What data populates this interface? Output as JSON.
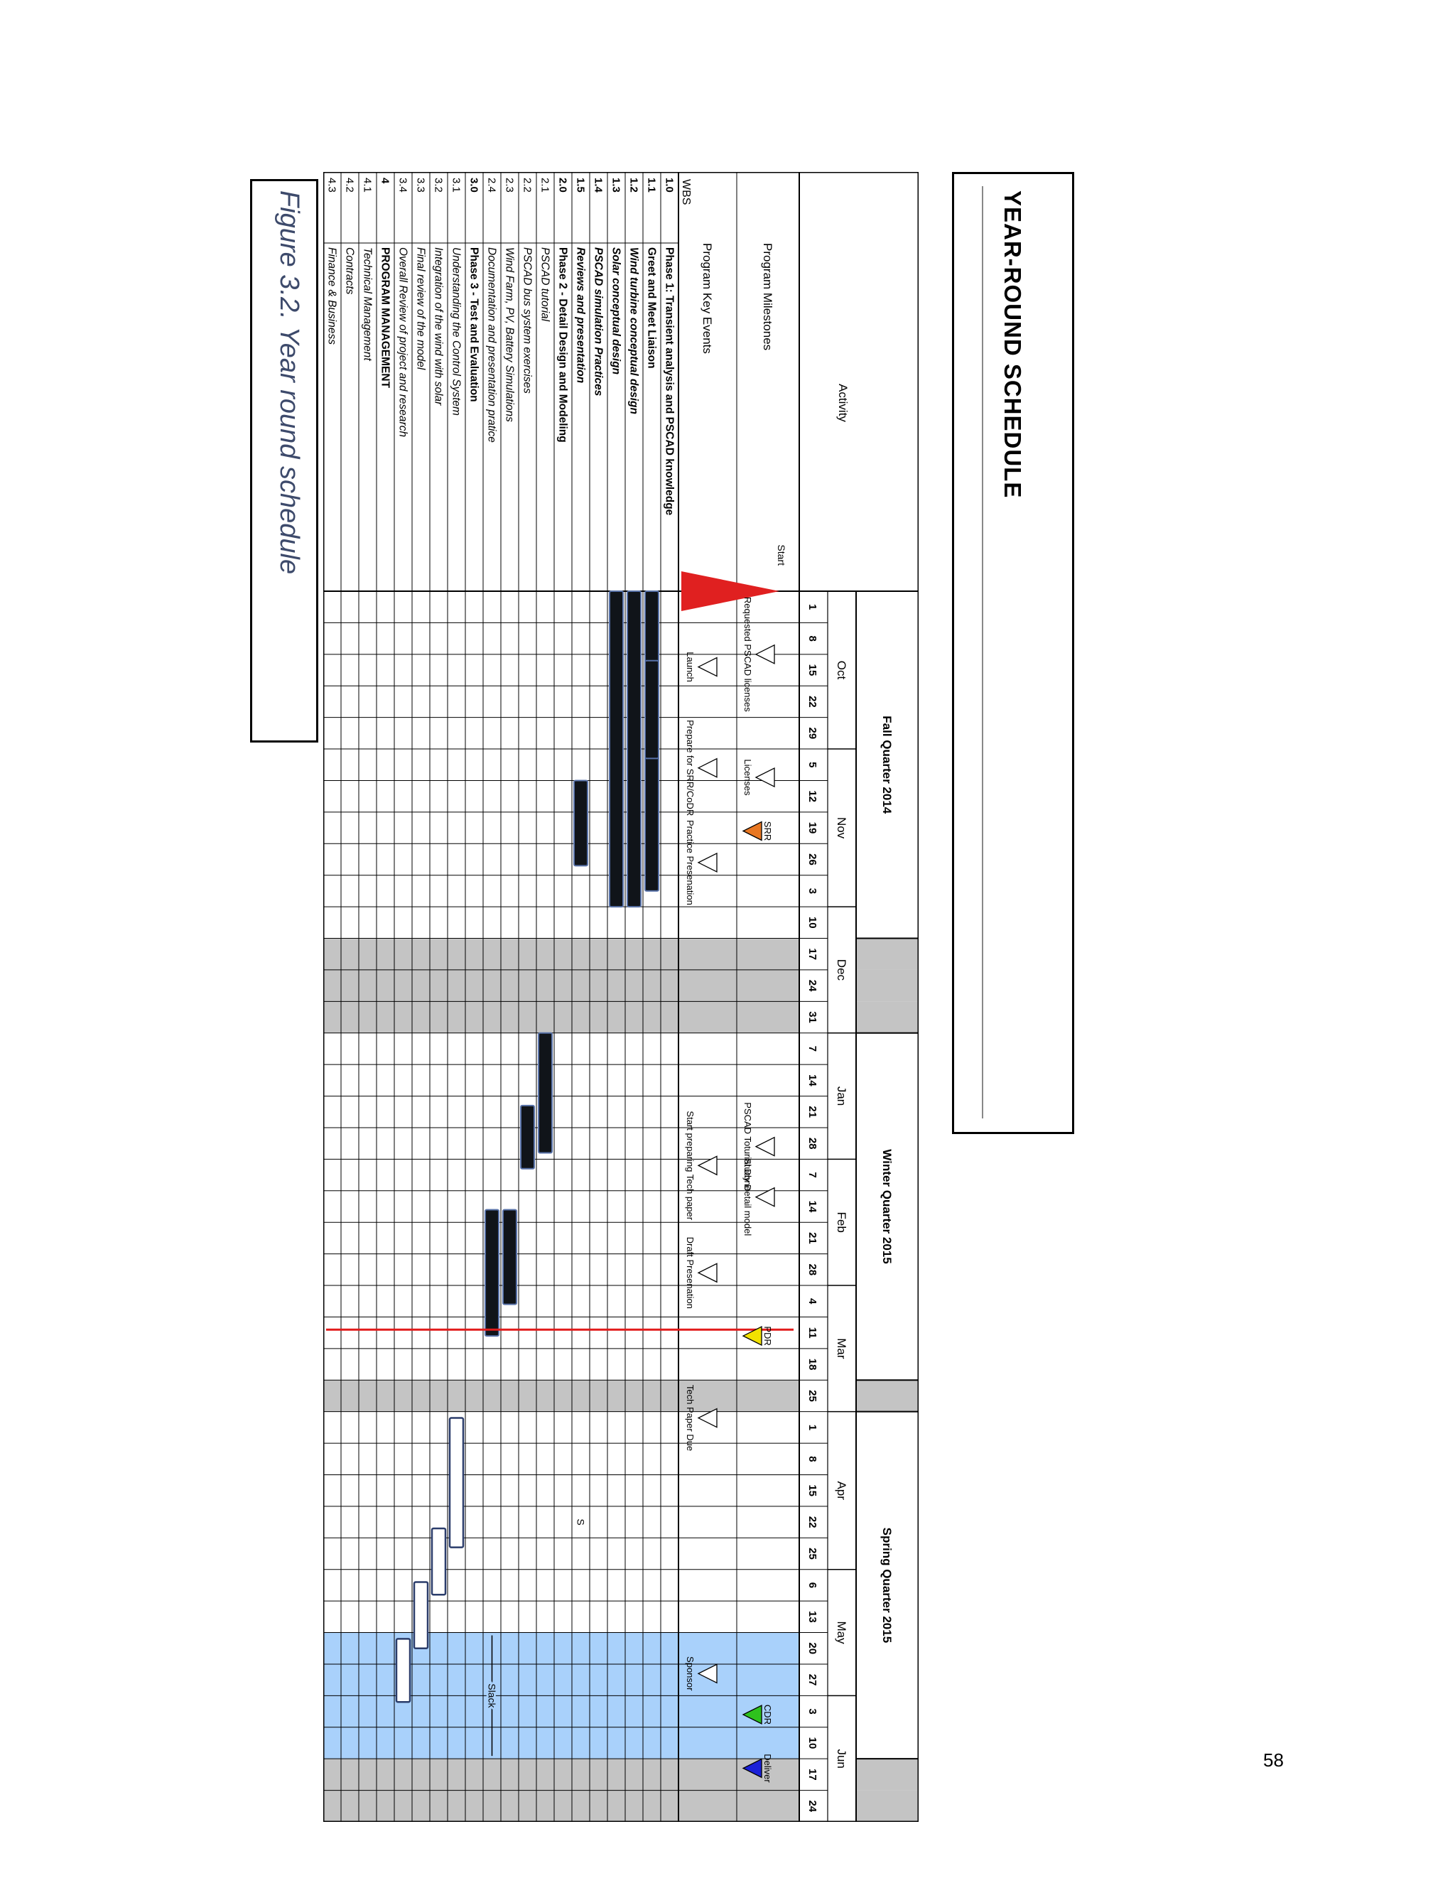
{
  "page": {
    "title": "Year-Round Schedule",
    "caption": "Figure 3.2. Year round schedule",
    "page_number": "58"
  },
  "schedule": {
    "header": {
      "activity": "Activity",
      "program_milestones": "Program Milestones",
      "program_key_events": "Program Key Events",
      "wbs": "WBS",
      "start_label": "Start"
    },
    "quarters": [
      {
        "label": "Fall Quarter 2014",
        "weeks": 11
      },
      {
        "label": "",
        "weeks": 3,
        "shaded": true
      },
      {
        "label": "Winter Quarter 2015",
        "weeks": 11
      },
      {
        "label": "",
        "weeks": 1,
        "shaded": true
      },
      {
        "label": "Spring Quarter 2015",
        "weeks": 11
      },
      {
        "label": "",
        "weeks": 2,
        "shaded": true
      }
    ],
    "months": [
      {
        "label": "Oct",
        "start": 0,
        "span": 5
      },
      {
        "label": "Nov",
        "start": 5,
        "span": 5
      },
      {
        "label": "Dec",
        "start": 10,
        "span": 4
      },
      {
        "label": "Jan",
        "start": 14,
        "span": 4
      },
      {
        "label": "Feb",
        "start": 18,
        "span": 4
      },
      {
        "label": "Mar",
        "start": 22,
        "span": 4
      },
      {
        "label": "Apr",
        "start": 26,
        "span": 5
      },
      {
        "label": "May",
        "start": 31,
        "span": 4
      },
      {
        "label": "Jun",
        "start": 35,
        "span": 4
      }
    ],
    "weeks": [
      "1",
      "8",
      "15",
      "22",
      "29",
      "5",
      "12",
      "19",
      "26",
      "3",
      "10",
      "17",
      "24",
      "31",
      "7",
      "14",
      "21",
      "28",
      "7",
      "14",
      "21",
      "28",
      "4",
      "11",
      "18",
      "25",
      "1",
      "8",
      "15",
      "22",
      "25",
      "6",
      "13",
      "20",
      "27",
      "3",
      "10",
      "17",
      "24"
    ],
    "shaded_weeks": [
      11,
      12,
      13,
      25,
      37,
      38
    ],
    "slack_weeks": [
      33,
      34,
      35,
      36
    ],
    "rows": [
      {
        "wbs": "1.0",
        "name": "Phase 1: Transient analysis and PSCAD knowledge",
        "bold": true,
        "italic": false
      },
      {
        "wbs": "1.1",
        "name": "Greet and Meet Liaison",
        "bold": true,
        "italic": false
      },
      {
        "wbs": "1.2",
        "name": "Wind turbine conceptual design",
        "bold": true,
        "italic": true
      },
      {
        "wbs": "1.3",
        "name": "Solar conceptual design",
        "bold": true,
        "italic": true
      },
      {
        "wbs": "1.4",
        "name": "PSCAD simulation Practices",
        "bold": true,
        "italic": true
      },
      {
        "wbs": "1.5",
        "name": "Reviews and presentation",
        "bold": true,
        "italic": true
      },
      {
        "wbs": "2.0",
        "name": "Phase 2 - Detail Design and Modeling",
        "bold": true,
        "italic": false
      },
      {
        "wbs": "2.1",
        "name": "PSCAD tutorial",
        "bold": false,
        "italic": true
      },
      {
        "wbs": "2.2",
        "name": "PSCAD bus system exercises",
        "bold": false,
        "italic": true
      },
      {
        "wbs": "2.3",
        "name": "Wind Farm, PV, Battery Simulations",
        "bold": false,
        "italic": true
      },
      {
        "wbs": "2.4",
        "name": "Documentation and presentation pratice",
        "bold": false,
        "italic": true
      },
      {
        "wbs": "3.0",
        "name": "Phase 3 - Test and Evaluation",
        "bold": true,
        "italic": false
      },
      {
        "wbs": "3.1",
        "name": "Understanding the Control System",
        "bold": false,
        "italic": true
      },
      {
        "wbs": "3.2",
        "name": "Integration of the wind with solar",
        "bold": false,
        "italic": true
      },
      {
        "wbs": "3.3",
        "name": "Final review of the model",
        "bold": false,
        "italic": true
      },
      {
        "wbs": "3.4",
        "name": "Overall Review of project and research",
        "bold": false,
        "italic": true
      },
      {
        "wbs": "4",
        "name": "PROGRAM MANAGEMENT",
        "bold": true,
        "italic": false
      },
      {
        "wbs": "4.1",
        "name": "Technical Management",
        "bold": false,
        "italic": true
      },
      {
        "wbs": "4.2",
        "name": "Contracts",
        "bold": false,
        "italic": true
      },
      {
        "wbs": "4.3",
        "name": "Finance & Business",
        "bold": false,
        "italic": true
      }
    ],
    "bars": [
      {
        "row": 1,
        "start": 0,
        "end": 9.5,
        "style": "solid"
      },
      {
        "row": 1,
        "start": 2.2,
        "end": 5.3,
        "style": "solid"
      },
      {
        "row": 2,
        "start": 0,
        "end": 10,
        "style": "solid"
      },
      {
        "row": 3,
        "start": 0,
        "end": 10,
        "style": "solid"
      },
      {
        "row": 5,
        "start": 6,
        "end": 8.7,
        "style": "solid"
      },
      {
        "row": 7,
        "start": 14,
        "end": 17.8,
        "style": "solid"
      },
      {
        "row": 8,
        "start": 16.3,
        "end": 18.3,
        "style": "solid"
      },
      {
        "row": 9,
        "start": 19.6,
        "end": 22.6,
        "style": "solid"
      },
      {
        "row": 10,
        "start": 19.6,
        "end": 23.6,
        "style": "solid"
      },
      {
        "row": 12,
        "start": 26.2,
        "end": 30.3,
        "style": "hollow"
      },
      {
        "row": 13,
        "start": 29.7,
        "end": 31.8,
        "style": "hollow"
      },
      {
        "row": 14,
        "start": 31.4,
        "end": 33.5,
        "style": "hollow"
      },
      {
        "row": 15,
        "start": 33.2,
        "end": 35.2,
        "style": "hollow"
      }
    ],
    "milestones": [
      {
        "label": "Start",
        "week": 0,
        "band": "milestone",
        "shape": "flag",
        "color": "#e02020"
      },
      {
        "label": "SRR",
        "week": 7.6,
        "band": "milestone",
        "shape": "filled",
        "color": "#e87722"
      },
      {
        "label": "PDR",
        "week": 23.6,
        "band": "milestone",
        "shape": "filled",
        "color": "#f2e100"
      },
      {
        "label": "CDR",
        "week": 35.6,
        "band": "milestone",
        "shape": "filled",
        "color": "#2ec21d"
      },
      {
        "label": "Deliver",
        "week": 37.3,
        "band": "milestone",
        "shape": "filled",
        "color": "#1a20d8"
      },
      {
        "label": "Requested PSCAD licenses",
        "week": 2.0,
        "band": "upper",
        "shape": "hollow",
        "color": "#000000"
      },
      {
        "label": "Licenses",
        "week": 5.9,
        "band": "upper",
        "shape": "hollow",
        "color": "#000000"
      },
      {
        "label": "PSCAD Toturial Done",
        "week": 17.6,
        "band": "upper",
        "shape": "hollow",
        "color": "#000000"
      },
      {
        "label": "Study Detail model",
        "week": 19.2,
        "band": "upper",
        "shape": "hollow",
        "color": "#000000"
      },
      {
        "label": "Launch",
        "week": 2.4,
        "band": "lower",
        "shape": "hollow",
        "color": "#000000"
      },
      {
        "label": "Prepare for SRR/CoDR",
        "week": 5.6,
        "band": "lower",
        "shape": "hollow",
        "color": "#000000"
      },
      {
        "label": "Practice Presenation",
        "week": 8.6,
        "band": "lower",
        "shape": "hollow",
        "color": "#000000"
      },
      {
        "label": "Start preparing Tech paper",
        "week": 18.2,
        "band": "lower",
        "shape": "hollow",
        "color": "#000000"
      },
      {
        "label": "Draft Presenation",
        "week": 21.6,
        "band": "lower",
        "shape": "hollow",
        "color": "#000000"
      },
      {
        "label": "Tech Paper Due",
        "week": 26.2,
        "band": "lower",
        "shape": "hollow",
        "color": "#000000"
      },
      {
        "label": "Sponsor",
        "week": 34.3,
        "band": "lower",
        "shape": "hollow",
        "color": "#000000"
      }
    ],
    "today_line_week": 23.4,
    "slack_label": "Slack",
    "review_mark": {
      "label": "S",
      "row": 5,
      "week": 29.5
    },
    "colors": {
      "shaded": "#c4c4c4",
      "slack": "#a9d1fb",
      "today_line": "#e21b1b",
      "bar": "#101419",
      "bar_edge": "#5872a8"
    }
  }
}
